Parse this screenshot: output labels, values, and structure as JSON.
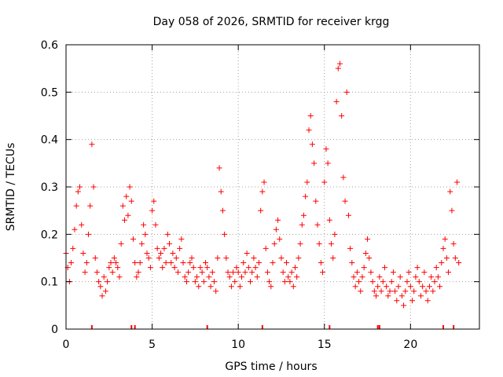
{
  "chart_data": {
    "type": "scatter",
    "title": "Day 058 of 2026, SRMTID for receiver krgg",
    "xlabel": "GPS time / hours",
    "ylabel": "SRMTID / TECUs",
    "xlim": [
      0,
      24
    ],
    "ylim": [
      0,
      0.6
    ],
    "xticks": [
      0,
      5,
      10,
      15,
      20
    ],
    "yticks": [
      0,
      0.1,
      0.2,
      0.3,
      0.4,
      0.5,
      0.6
    ],
    "xtick_labels": [
      "0",
      "5",
      "10",
      "15",
      "20"
    ],
    "ytick_labels": [
      "0",
      "0.1",
      "0.2",
      "0.3",
      "0.4",
      "0.5",
      "0.6"
    ],
    "grid": true,
    "marker": "+",
    "marker_color": "#ff0000",
    "series": [
      {
        "name": "SRMTID",
        "points": [
          [
            0.0,
            0.16
          ],
          [
            0.1,
            0.13
          ],
          [
            0.2,
            0.1
          ],
          [
            0.3,
            0.14
          ],
          [
            0.4,
            0.17
          ],
          [
            0.5,
            0.21
          ],
          [
            0.6,
            0.26
          ],
          [
            0.7,
            0.29
          ],
          [
            0.8,
            0.3
          ],
          [
            0.9,
            0.22
          ],
          [
            1.0,
            0.16
          ],
          [
            1.1,
            0.12
          ],
          [
            1.2,
            0.14
          ],
          [
            1.3,
            0.2
          ],
          [
            1.4,
            0.26
          ],
          [
            1.5,
            0.39
          ],
          [
            1.6,
            0.3
          ],
          [
            1.7,
            0.15
          ],
          [
            1.8,
            0.12
          ],
          [
            1.9,
            0.1
          ],
          [
            2.0,
            0.09
          ],
          [
            2.1,
            0.07
          ],
          [
            2.2,
            0.11
          ],
          [
            2.3,
            0.08
          ],
          [
            2.4,
            0.1
          ],
          [
            2.5,
            0.13
          ],
          [
            2.6,
            0.14
          ],
          [
            2.7,
            0.12
          ],
          [
            2.8,
            0.15
          ],
          [
            2.9,
            0.14
          ],
          [
            3.0,
            0.13
          ],
          [
            3.1,
            0.11
          ],
          [
            3.2,
            0.18
          ],
          [
            3.3,
            0.26
          ],
          [
            3.4,
            0.23
          ],
          [
            3.5,
            0.28
          ],
          [
            3.6,
            0.24
          ],
          [
            3.7,
            0.3
          ],
          [
            3.8,
            0.27
          ],
          [
            3.9,
            0.19
          ],
          [
            4.0,
            0.14
          ],
          [
            4.1,
            0.11
          ],
          [
            4.2,
            0.12
          ],
          [
            4.3,
            0.14
          ],
          [
            4.4,
            0.18
          ],
          [
            4.5,
            0.22
          ],
          [
            4.6,
            0.2
          ],
          [
            4.7,
            0.16
          ],
          [
            4.8,
            0.15
          ],
          [
            4.9,
            0.13
          ],
          [
            5.0,
            0.25
          ],
          [
            5.1,
            0.27
          ],
          [
            5.2,
            0.22
          ],
          [
            5.3,
            0.17
          ],
          [
            5.4,
            0.15
          ],
          [
            5.5,
            0.16
          ],
          [
            5.6,
            0.13
          ],
          [
            5.7,
            0.17
          ],
          [
            5.8,
            0.14
          ],
          [
            5.9,
            0.2
          ],
          [
            6.0,
            0.18
          ],
          [
            6.1,
            0.14
          ],
          [
            6.2,
            0.16
          ],
          [
            6.3,
            0.13
          ],
          [
            6.4,
            0.15
          ],
          [
            6.5,
            0.12
          ],
          [
            6.6,
            0.17
          ],
          [
            6.7,
            0.19
          ],
          [
            6.8,
            0.14
          ],
          [
            6.9,
            0.11
          ],
          [
            7.0,
            0.1
          ],
          [
            7.1,
            0.12
          ],
          [
            7.2,
            0.14
          ],
          [
            7.3,
            0.15
          ],
          [
            7.4,
            0.13
          ],
          [
            7.5,
            0.1
          ],
          [
            7.6,
            0.11
          ],
          [
            7.7,
            0.09
          ],
          [
            7.8,
            0.13
          ],
          [
            7.9,
            0.12
          ],
          [
            8.0,
            0.1
          ],
          [
            8.1,
            0.14
          ],
          [
            8.2,
            0.13
          ],
          [
            8.3,
            0.11
          ],
          [
            8.4,
            0.09
          ],
          [
            8.5,
            0.12
          ],
          [
            8.6,
            0.1
          ],
          [
            8.7,
            0.08
          ],
          [
            8.8,
            0.15
          ],
          [
            8.9,
            0.34
          ],
          [
            9.0,
            0.29
          ],
          [
            9.1,
            0.25
          ],
          [
            9.2,
            0.2
          ],
          [
            9.3,
            0.15
          ],
          [
            9.4,
            0.12
          ],
          [
            9.5,
            0.11
          ],
          [
            9.6,
            0.09
          ],
          [
            9.7,
            0.12
          ],
          [
            9.8,
            0.1
          ],
          [
            9.9,
            0.13
          ],
          [
            10.0,
            0.12
          ],
          [
            10.1,
            0.09
          ],
          [
            10.2,
            0.11
          ],
          [
            10.3,
            0.14
          ],
          [
            10.4,
            0.12
          ],
          [
            10.5,
            0.16
          ],
          [
            10.6,
            0.13
          ],
          [
            10.7,
            0.1
          ],
          [
            10.8,
            0.12
          ],
          [
            10.9,
            0.15
          ],
          [
            11.0,
            0.13
          ],
          [
            11.1,
            0.11
          ],
          [
            11.2,
            0.14
          ],
          [
            11.3,
            0.25
          ],
          [
            11.4,
            0.29
          ],
          [
            11.5,
            0.31
          ],
          [
            11.6,
            0.17
          ],
          [
            11.7,
            0.12
          ],
          [
            11.8,
            0.1
          ],
          [
            11.9,
            0.09
          ],
          [
            12.0,
            0.14
          ],
          [
            12.1,
            0.18
          ],
          [
            12.2,
            0.21
          ],
          [
            12.3,
            0.23
          ],
          [
            12.4,
            0.19
          ],
          [
            12.5,
            0.15
          ],
          [
            12.6,
            0.12
          ],
          [
            12.7,
            0.1
          ],
          [
            12.8,
            0.14
          ],
          [
            12.9,
            0.11
          ],
          [
            13.0,
            0.1
          ],
          [
            13.1,
            0.12
          ],
          [
            13.2,
            0.09
          ],
          [
            13.3,
            0.13
          ],
          [
            13.4,
            0.11
          ],
          [
            13.5,
            0.15
          ],
          [
            13.6,
            0.18
          ],
          [
            13.7,
            0.22
          ],
          [
            13.8,
            0.24
          ],
          [
            13.9,
            0.28
          ],
          [
            14.0,
            0.31
          ],
          [
            14.1,
            0.42
          ],
          [
            14.2,
            0.45
          ],
          [
            14.3,
            0.39
          ],
          [
            14.4,
            0.35
          ],
          [
            14.5,
            0.27
          ],
          [
            14.6,
            0.22
          ],
          [
            14.7,
            0.18
          ],
          [
            14.8,
            0.14
          ],
          [
            14.9,
            0.12
          ],
          [
            15.0,
            0.31
          ],
          [
            15.1,
            0.38
          ],
          [
            15.2,
            0.35
          ],
          [
            15.3,
            0.23
          ],
          [
            15.4,
            0.18
          ],
          [
            15.5,
            0.15
          ],
          [
            15.6,
            0.2
          ],
          [
            15.7,
            0.48
          ],
          [
            15.8,
            0.55
          ],
          [
            15.9,
            0.56
          ],
          [
            16.0,
            0.45
          ],
          [
            16.1,
            0.32
          ],
          [
            16.2,
            0.27
          ],
          [
            16.3,
            0.5
          ],
          [
            16.4,
            0.24
          ],
          [
            16.5,
            0.17
          ],
          [
            16.6,
            0.14
          ],
          [
            16.7,
            0.11
          ],
          [
            16.8,
            0.09
          ],
          [
            16.9,
            0.12
          ],
          [
            17.0,
            0.1
          ],
          [
            17.1,
            0.08
          ],
          [
            17.2,
            0.11
          ],
          [
            17.3,
            0.13
          ],
          [
            17.4,
            0.16
          ],
          [
            17.5,
            0.19
          ],
          [
            17.6,
            0.15
          ],
          [
            17.7,
            0.12
          ],
          [
            17.8,
            0.1
          ],
          [
            17.9,
            0.08
          ],
          [
            18.0,
            0.07
          ],
          [
            18.1,
            0.09
          ],
          [
            18.2,
            0.11
          ],
          [
            18.3,
            0.08
          ],
          [
            18.4,
            0.1
          ],
          [
            18.5,
            0.13
          ],
          [
            18.6,
            0.09
          ],
          [
            18.7,
            0.07
          ],
          [
            18.8,
            0.08
          ],
          [
            18.9,
            0.1
          ],
          [
            19.0,
            0.12
          ],
          [
            19.1,
            0.08
          ],
          [
            19.2,
            0.06
          ],
          [
            19.3,
            0.09
          ],
          [
            19.4,
            0.11
          ],
          [
            19.5,
            0.07
          ],
          [
            19.6,
            0.05
          ],
          [
            19.7,
            0.08
          ],
          [
            19.8,
            0.1
          ],
          [
            19.9,
            0.12
          ],
          [
            20.0,
            0.09
          ],
          [
            20.1,
            0.06
          ],
          [
            20.2,
            0.08
          ],
          [
            20.3,
            0.11
          ],
          [
            20.4,
            0.13
          ],
          [
            20.5,
            0.1
          ],
          [
            20.6,
            0.07
          ],
          [
            20.7,
            0.09
          ],
          [
            20.8,
            0.12
          ],
          [
            20.9,
            0.08
          ],
          [
            21.0,
            0.06
          ],
          [
            21.1,
            0.09
          ],
          [
            21.2,
            0.11
          ],
          [
            21.3,
            0.08
          ],
          [
            21.4,
            0.1
          ],
          [
            21.5,
            0.13
          ],
          [
            21.6,
            0.11
          ],
          [
            21.7,
            0.09
          ],
          [
            21.8,
            0.14
          ],
          [
            21.9,
            0.17
          ],
          [
            22.0,
            0.19
          ],
          [
            22.1,
            0.15
          ],
          [
            22.2,
            0.12
          ],
          [
            22.3,
            0.29
          ],
          [
            22.4,
            0.25
          ],
          [
            22.5,
            0.18
          ],
          [
            22.6,
            0.15
          ],
          [
            22.7,
            0.31
          ],
          [
            22.8,
            0.14
          ]
        ]
      }
    ],
    "rug_marks_x": [
      1.5,
      3.8,
      4.0,
      8.2,
      11.4,
      15.3,
      18.1,
      18.2,
      21.9,
      22.5
    ]
  }
}
